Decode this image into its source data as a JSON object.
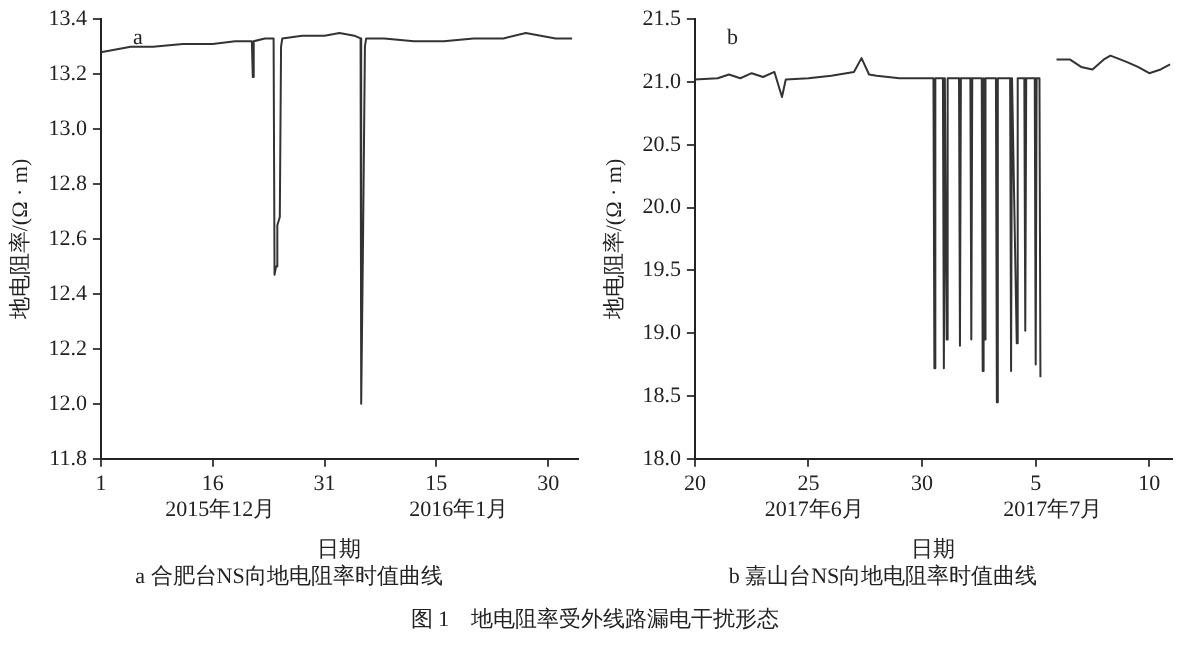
{
  "chart_data": [
    {
      "type": "line",
      "title": "a 合肥台NS向地电阻率时值曲线",
      "xlabel": "日期",
      "ylabel": "地电阻率/(Ω · m)",
      "color": "#333333",
      "grid": false,
      "legend": false,
      "marker": "none",
      "subtitle": "图 1　地电阻率受外线路漏电干扰形态",
      "annotations": [
        "a",
        "2015年12月",
        "2016年1月"
      ],
      "xlim": [
        "2015-12-01",
        "2016-02-03"
      ],
      "xticks": [
        {
          "value": "2015-12-01",
          "label": "1"
        },
        {
          "value": "2015-12-16",
          "label": "16"
        },
        {
          "value": "2015-12-31",
          "label": "31"
        },
        {
          "value": "2016-01-15",
          "label": "15"
        },
        {
          "value": "2016-01-30",
          "label": "30"
        }
      ],
      "ylim": [
        11.8,
        13.4
      ],
      "yticks": [
        11.8,
        {
          "value": 12,
          "label": "12.0"
        },
        12.2,
        12.4,
        12.6,
        12.8,
        {
          "value": 13,
          "label": "13.0"
        },
        13.2,
        13.4
      ],
      "x": [
        "2015-12-01",
        "2015-12-03",
        "2015-12-05",
        "2015-12-08",
        "2015-12-12",
        "2015-12-16",
        "2015-12-19",
        "2015-12-21T06:00",
        "2015-12-21T09:00",
        "2015-12-21T12:00",
        "2015-12-23",
        "2015-12-24T04:00",
        "2015-12-24T07:00",
        "2015-12-24T12:00",
        "2015-12-24T16:00",
        "2015-12-25T00:00",
        "2015-12-25T04:00",
        "2015-12-25T08:00",
        "2015-12-28",
        "2015-12-31",
        "2016-01-02",
        "2016-01-04",
        "2016-01-04T20:00",
        "2016-01-04T22:00",
        "2016-01-05T04:00",
        "2016-01-05T10:00",
        "2016-01-05T14:00",
        "2016-01-08",
        "2016-01-12",
        "2016-01-16",
        "2016-01-20",
        "2016-01-24",
        "2016-01-27",
        "2016-01-29",
        "2016-01-31",
        "2016-02-02T05:00"
      ],
      "values": [
        13.28,
        13.29,
        13.3,
        13.3,
        13.31,
        13.31,
        13.32,
        13.32,
        13.19,
        13.32,
        13.33,
        13.33,
        12.47,
        12.5,
        12.65,
        12.68,
        13.3,
        13.33,
        13.34,
        13.34,
        13.35,
        13.34,
        13.33,
        12.0,
        12.6,
        13.3,
        13.33,
        13.33,
        13.32,
        13.32,
        13.33,
        13.33,
        13.35,
        13.34,
        13.33,
        13.33
      ]
    },
    {
      "type": "line",
      "title": "b 嘉山台NS向地电阻率时值曲线",
      "xlabel": "日期",
      "ylabel": "地电阻率/(Ω · m)",
      "color": "#333333",
      "grid": false,
      "legend": false,
      "marker": "none",
      "annotations": [
        "b",
        "2017年6月",
        "2017年7月"
      ],
      "xlim": [
        "2017-06-20",
        "2017-07-11"
      ],
      "xticks": [
        {
          "value": "2017-06-20",
          "label": "20"
        },
        {
          "value": "2017-06-25",
          "label": "25"
        },
        {
          "value": "2017-06-30",
          "label": "30"
        },
        {
          "value": "2017-07-05",
          "label": "5"
        },
        {
          "value": "2017-07-10",
          "label": "10"
        }
      ],
      "ylim": [
        18.0,
        21.5
      ],
      "yticks": [
        {
          "value": 18,
          "label": "18.0"
        },
        18.5,
        {
          "value": 19,
          "label": "19.0"
        },
        19.5,
        {
          "value": 20,
          "label": "20.0"
        },
        20.5,
        {
          "value": 21,
          "label": "21.0"
        },
        21.5
      ],
      "x": [
        "2017-06-20",
        "2017-06-21",
        "2017-06-21T12:00",
        "2017-06-22",
        "2017-06-22T12:00",
        "2017-06-23",
        "2017-06-23T12:00",
        "2017-06-23T20:00",
        "2017-06-24",
        "2017-06-25",
        "2017-06-26",
        "2017-06-27",
        "2017-06-27T08:00",
        "2017-06-27T16:00",
        "2017-06-28",
        "2017-06-29",
        "2017-06-30",
        "2017-06-30T12:00",
        "2017-06-30T13:00",
        "2017-06-30T14:00",
        "2017-06-30T22:00",
        "2017-06-30T23:00",
        "2017-07-01T00:00",
        "2017-07-01T02:00",
        "2017-07-01T03:00",
        "2017-07-01T15:00",
        "2017-07-01T16:00",
        "2017-07-01T17:00",
        "2017-07-02T03:00",
        "2017-07-02T04:00",
        "2017-07-02T05:00",
        "2017-07-02T15:00",
        "2017-07-02T16:00",
        "2017-07-02T17:00",
        "2017-07-02T18:00",
        "2017-07-02T19:00",
        "2017-07-03T06:00",
        "2017-07-03T07:00",
        "2017-07-03T08:00",
        "2017-07-03T21:00",
        "2017-07-03T22:00",
        "2017-07-03T23:00",
        "2017-07-04T04:00",
        "2017-07-04T05:00",
        "2017-07-04T12:00",
        "2017-07-04T13:00",
        "2017-07-04T14:00",
        "2017-07-04T23:00",
        "2017-07-05T00:00",
        "2017-07-05T01:00",
        "2017-07-05T04:00",
        "2017-07-05T05:00",
        "2017-07-05T12:00",
        "2017-07-05T22:00",
        "2017-07-06T12:00",
        "2017-07-07",
        "2017-07-07T12:00",
        "2017-07-08",
        "2017-07-08T07:00",
        "2017-07-09",
        "2017-07-09T12:00",
        "2017-07-10",
        "2017-07-10T12:00",
        "2017-07-10T22:00"
      ],
      "values": [
        21.02,
        21.03,
        21.06,
        21.03,
        21.07,
        21.04,
        21.08,
        20.88,
        21.02,
        21.03,
        21.05,
        21.08,
        21.19,
        21.06,
        21.05,
        21.03,
        21.03,
        21.03,
        18.72,
        21.03,
        21.03,
        18.72,
        21.03,
        18.95,
        21.03,
        21.03,
        18.9,
        21.03,
        21.03,
        18.95,
        21.03,
        21.03,
        18.7,
        21.03,
        18.95,
        21.03,
        21.03,
        18.45,
        21.03,
        21.03,
        18.7,
        21.03,
        18.92,
        21.03,
        21.03,
        19.02,
        21.03,
        21.03,
        18.75,
        21.03,
        21.03,
        18.65,
        null,
        21.18,
        21.18,
        21.12,
        21.1,
        21.18,
        21.21,
        21.16,
        21.12,
        21.07,
        21.1,
        21.14
      ]
    }
  ]
}
